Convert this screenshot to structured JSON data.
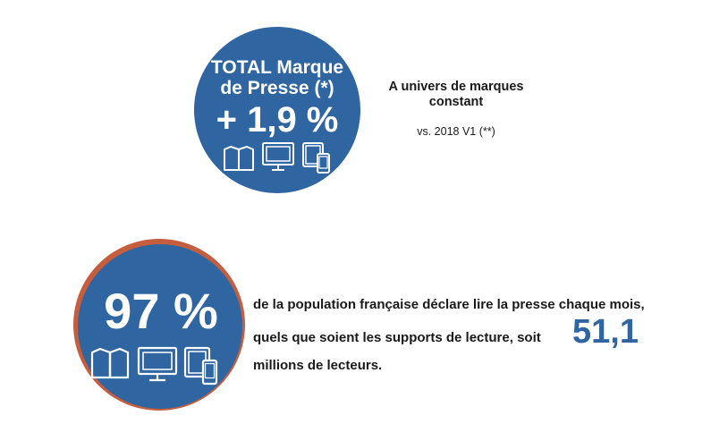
{
  "top_stat": {
    "label_line1": "TOTAL Marque",
    "label_line2": "de Presse (*)",
    "value": "+ 1,9 %",
    "side_line1": "A univers de marques",
    "side_line2": "constant",
    "comparison": "vs. 2018 V1 (**)",
    "icons": [
      "book-icon",
      "monitor-icon",
      "tablet-phone-icon"
    ]
  },
  "bottom_stat": {
    "value": "97 %",
    "text_line1": "de la population française déclare lire la presse chaque mois,",
    "text_line2": "quels que soient les supports de lecture, soit",
    "text_line3": "millions de lecteurs.",
    "millions": "51,1",
    "icons": [
      "book-icon",
      "monitor-icon",
      "tablet-phone-icon"
    ]
  },
  "colors": {
    "circle_blue": "#2f65a1",
    "ring_orange": "#c45e3f",
    "accent_number": "#2f65a1",
    "text_dark": "#1a1a1a"
  }
}
